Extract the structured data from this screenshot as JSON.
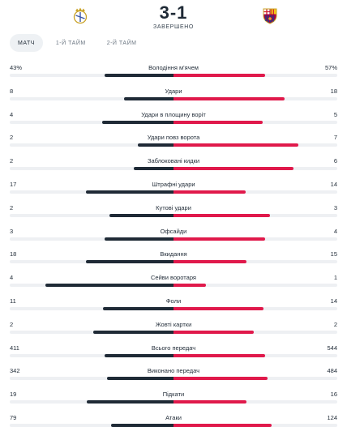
{
  "match": {
    "score": "3-1",
    "status": "ЗАВЕРШЕНО",
    "home_crest_icon": "real-madrid-crest-icon",
    "away_crest_icon": "barcelona-crest-icon"
  },
  "tabs": [
    {
      "label": "МАТЧ",
      "active": true
    },
    {
      "label": "1-Й ТАЙМ",
      "active": false
    },
    {
      "label": "2-Й ТАЙМ",
      "active": false
    }
  ],
  "colors": {
    "home_bar": "#1f2a36",
    "away_bar": "#e0194b",
    "track": "#eef0f3"
  },
  "stats": [
    {
      "label": "Володіння м'ячем",
      "home": "43%",
      "away": "57%",
      "home_num": 43,
      "away_num": 57
    },
    {
      "label": "Удари",
      "home": "8",
      "away": "18",
      "home_num": 8,
      "away_num": 18
    },
    {
      "label": "Удари в площину воріт",
      "home": "4",
      "away": "5",
      "home_num": 4,
      "away_num": 5
    },
    {
      "label": "Удари повз ворота",
      "home": "2",
      "away": "7",
      "home_num": 2,
      "away_num": 7
    },
    {
      "label": "Заблоковані кидки",
      "home": "2",
      "away": "6",
      "home_num": 2,
      "away_num": 6
    },
    {
      "label": "Штрафні удари",
      "home": "17",
      "away": "14",
      "home_num": 17,
      "away_num": 14
    },
    {
      "label": "Кутові удари",
      "home": "2",
      "away": "3",
      "home_num": 2,
      "away_num": 3
    },
    {
      "label": "Офсайди",
      "home": "3",
      "away": "4",
      "home_num": 3,
      "away_num": 4
    },
    {
      "label": "Вкидання",
      "home": "18",
      "away": "15",
      "home_num": 18,
      "away_num": 15
    },
    {
      "label": "Сейви воротаря",
      "home": "4",
      "away": "1",
      "home_num": 4,
      "away_num": 1
    },
    {
      "label": "Фоли",
      "home": "11",
      "away": "14",
      "home_num": 11,
      "away_num": 14
    },
    {
      "label": "Жовті картки",
      "home": "2",
      "away": "2",
      "home_num": 2,
      "away_num": 2
    },
    {
      "label": "Всього передач",
      "home": "411",
      "away": "544",
      "home_num": 411,
      "away_num": 544
    },
    {
      "label": "Виконано передач",
      "home": "342",
      "away": "484",
      "home_num": 342,
      "away_num": 484
    },
    {
      "label": "Підкати",
      "home": "19",
      "away": "16",
      "home_num": 19,
      "away_num": 16
    },
    {
      "label": "Атаки",
      "home": "79",
      "away": "124",
      "home_num": 79,
      "away_num": 124
    }
  ]
}
